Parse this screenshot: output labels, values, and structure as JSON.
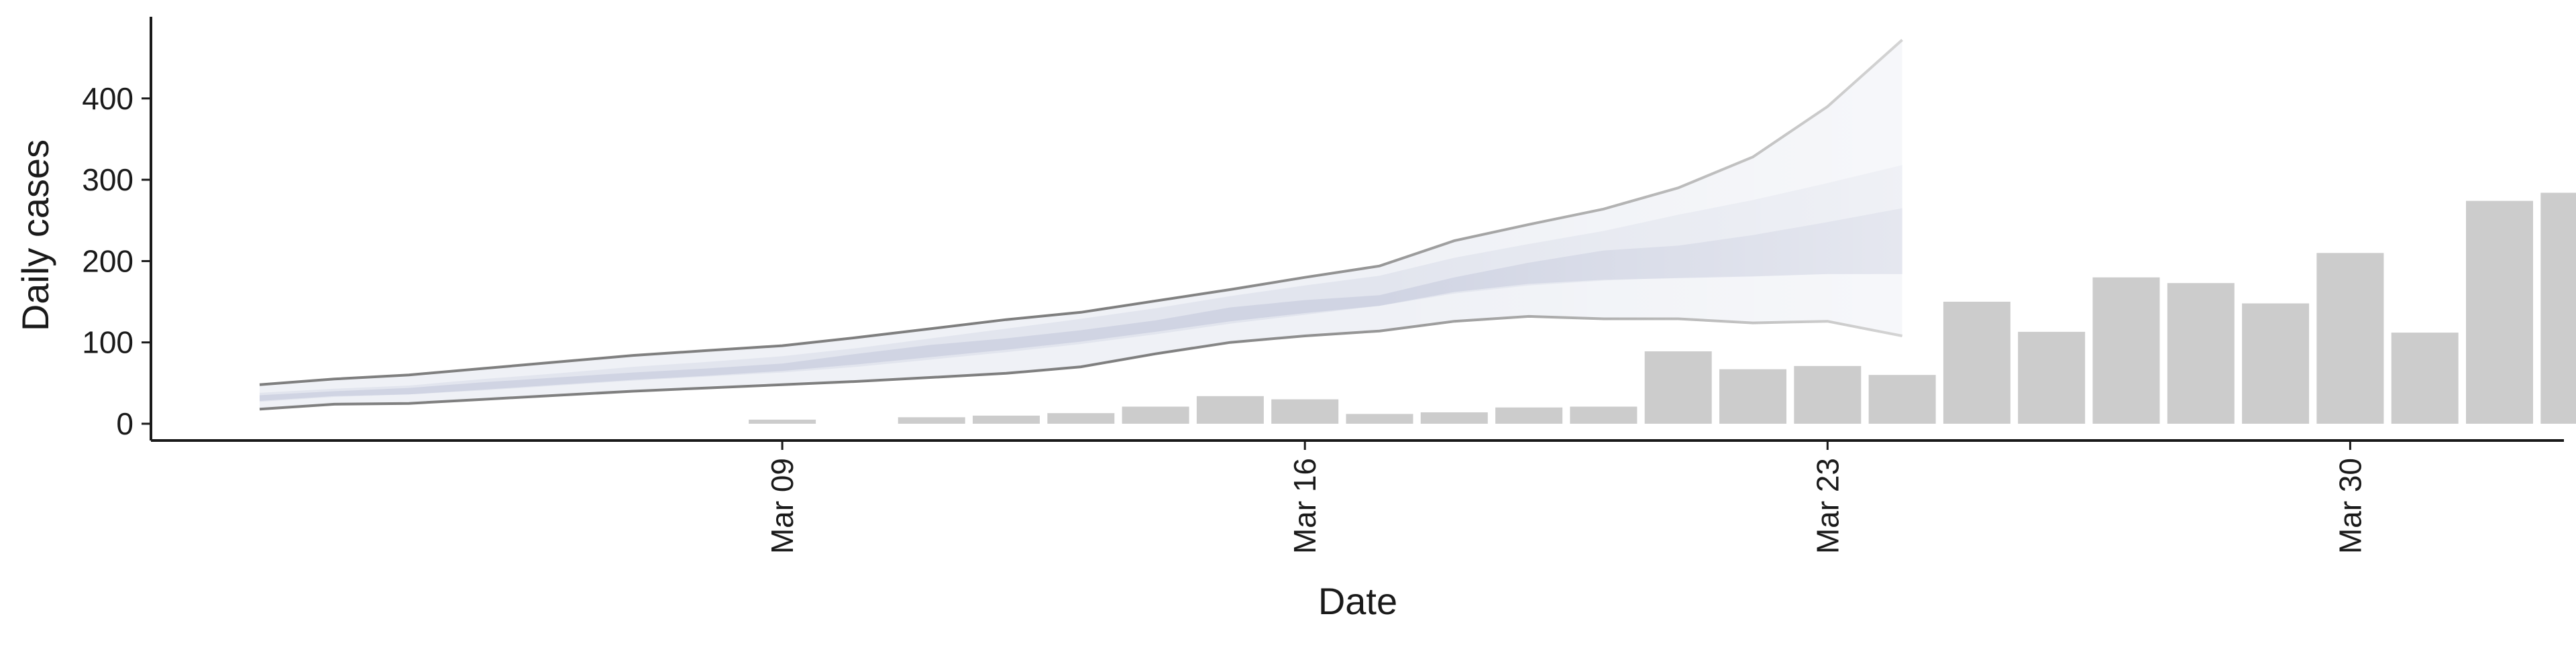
{
  "chart_data": {
    "type": "bar",
    "title": "",
    "xlabel": "Date",
    "ylabel": "Daily cases",
    "x_ticks": [
      {
        "date": "2020-03-09",
        "label": "Mar 09"
      },
      {
        "date": "2020-03-16",
        "label": "Mar 16"
      },
      {
        "date": "2020-03-23",
        "label": "Mar 23"
      },
      {
        "date": "2020-03-30",
        "label": "Mar 30"
      }
    ],
    "y_ticks": [
      0,
      100,
      200,
      300,
      400
    ],
    "xlim": [
      "2020-03-01",
      "2020-04-04"
    ],
    "ylim": [
      -20,
      495
    ],
    "grid": false,
    "legend": "none",
    "colors": {
      "bars": "#cccccc",
      "band_outer": "#eceef4",
      "band_mid": "#dfe2ec",
      "band_inner": "#c9cddf",
      "outer_line_early": "#7f7f7f",
      "outer_line_late": "#d4d4d4",
      "axis": "#1a1a1a"
    },
    "bars": [
      {
        "date": "2020-03-09",
        "value": 5
      },
      {
        "date": "2020-03-11",
        "value": 8
      },
      {
        "date": "2020-03-12",
        "value": 10
      },
      {
        "date": "2020-03-13",
        "value": 13
      },
      {
        "date": "2020-03-14",
        "value": 21
      },
      {
        "date": "2020-03-15",
        "value": 34
      },
      {
        "date": "2020-03-16",
        "value": 30
      },
      {
        "date": "2020-03-17",
        "value": 12
      },
      {
        "date": "2020-03-18",
        "value": 14
      },
      {
        "date": "2020-03-19",
        "value": 20
      },
      {
        "date": "2020-03-20",
        "value": 21
      },
      {
        "date": "2020-03-21",
        "value": 89
      },
      {
        "date": "2020-03-22",
        "value": 67
      },
      {
        "date": "2020-03-23",
        "value": 71
      },
      {
        "date": "2020-03-24",
        "value": 60
      },
      {
        "date": "2020-03-25",
        "value": 150
      },
      {
        "date": "2020-03-26",
        "value": 113
      },
      {
        "date": "2020-03-27",
        "value": 180
      },
      {
        "date": "2020-03-28",
        "value": 173
      },
      {
        "date": "2020-03-29",
        "value": 148
      },
      {
        "date": "2020-03-30",
        "value": 210
      },
      {
        "date": "2020-03-31",
        "value": 112
      },
      {
        "date": "2020-04-01",
        "value": 274
      },
      {
        "date": "2020-04-02",
        "value": 284
      }
    ],
    "estimate": {
      "x": [
        "2020-03-02",
        "2020-03-03",
        "2020-03-04",
        "2020-03-05",
        "2020-03-06",
        "2020-03-07",
        "2020-03-08",
        "2020-03-09",
        "2020-03-10",
        "2020-03-11",
        "2020-03-12",
        "2020-03-13",
        "2020-03-14",
        "2020-03-15",
        "2020-03-16",
        "2020-03-17",
        "2020-03-18",
        "2020-03-19",
        "2020-03-20",
        "2020-03-21",
        "2020-03-22",
        "2020-03-23",
        "2020-03-24"
      ],
      "outer_lower": [
        18,
        24,
        25,
        30,
        35,
        40,
        44,
        48,
        52,
        57,
        62,
        70,
        86,
        100,
        108,
        114,
        126,
        132,
        129,
        129,
        124,
        126,
        108
      ],
      "outer_upper": [
        48,
        55,
        60,
        68,
        76,
        84,
        90,
        96,
        106,
        117,
        128,
        137,
        151,
        165,
        180,
        194,
        225,
        245,
        264,
        290,
        328,
        390,
        472
      ],
      "mid_lower": [
        27,
        33,
        36,
        41,
        47,
        53,
        58,
        63,
        70,
        79,
        88,
        98,
        110,
        123,
        134,
        145,
        160,
        170,
        176,
        180,
        182,
        184,
        184
      ],
      "mid_upper": [
        38,
        43,
        47,
        55,
        62,
        70,
        76,
        83,
        93,
        105,
        117,
        129,
        142,
        157,
        170,
        182,
        204,
        221,
        237,
        257,
        275,
        296,
        318
      ],
      "inner_lower": [
        28,
        34,
        36,
        42,
        48,
        54,
        59,
        65,
        73,
        82,
        91,
        101,
        113,
        126,
        136,
        145,
        162,
        172,
        177,
        179,
        181,
        184,
        184
      ],
      "inner_upper": [
        35,
        40,
        44,
        51,
        57,
        63,
        68,
        74,
        86,
        97,
        105,
        115,
        127,
        143,
        152,
        158,
        180,
        198,
        213,
        219,
        232,
        248,
        265
      ]
    }
  }
}
